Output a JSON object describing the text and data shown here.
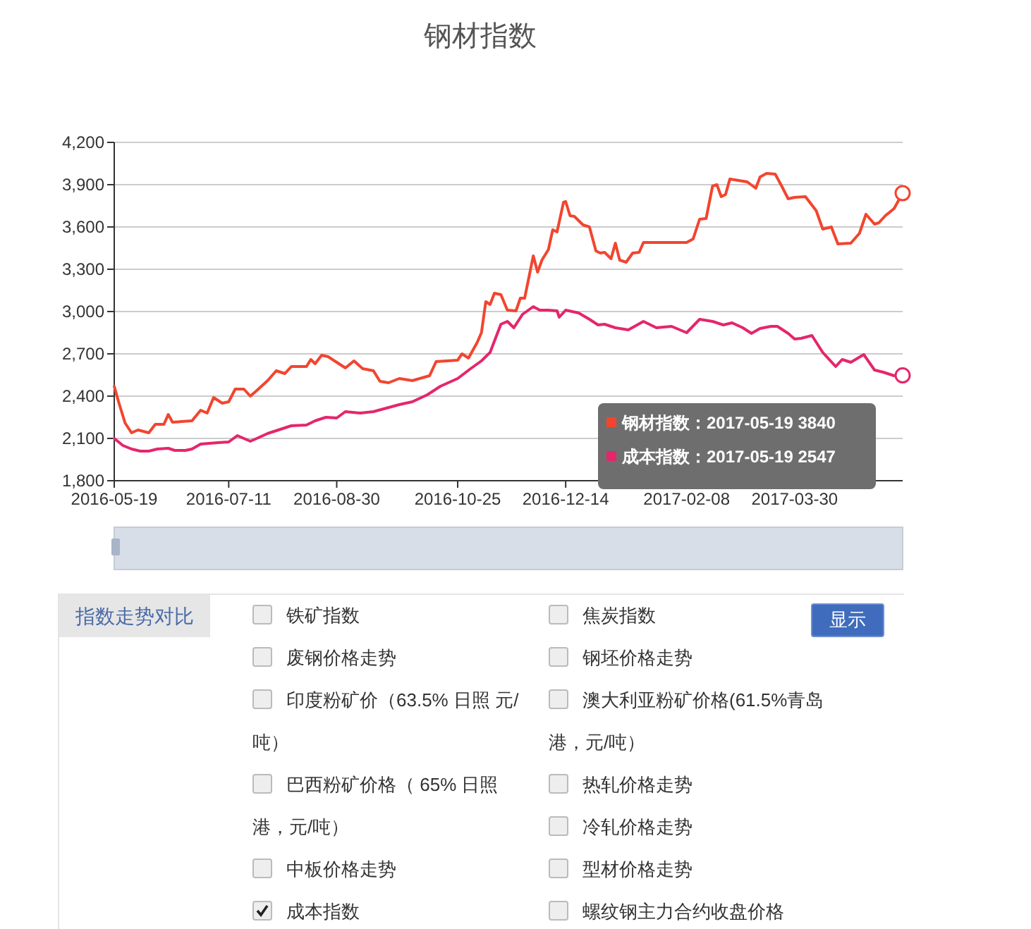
{
  "chart_data": [
    {
      "type": "line",
      "title": "钢材指数",
      "xlim": [
        "2016-05-19",
        "2017-05-19"
      ],
      "xticks": [
        "2016-05-19",
        "2016-07-11",
        "2016-08-30",
        "2016-10-25",
        "2016-12-14",
        "2017-02-08",
        "2017-03-30"
      ],
      "ylim": [
        1800,
        4200
      ],
      "yticks": [
        {
          "value": 1800,
          "label": "1,800"
        },
        {
          "value": 2100,
          "label": "2,100"
        },
        {
          "value": 2400,
          "label": "2,400"
        },
        {
          "value": 2700,
          "label": "2,700"
        },
        {
          "value": 3000,
          "label": "3,000"
        },
        {
          "value": 3300,
          "label": "3,300"
        },
        {
          "value": 3600,
          "label": "3,600"
        },
        {
          "value": 3900,
          "label": "3,900"
        },
        {
          "value": 4200,
          "label": "4,200"
        }
      ],
      "grid": "y",
      "line_style": "solid",
      "annotations": [
        "钢材指数：2017-05-19 3840",
        "成本指数：2017-05-19 2547"
      ],
      "series": [
        {
          "color": "#f2452f",
          "x": [
            "2016-05-19",
            "2016-05-21",
            "2016-05-24",
            "2016-05-27",
            "2016-05-30",
            "2016-06-04",
            "2016-06-07",
            "2016-06-11",
            "2016-06-13",
            "2016-06-15",
            "2016-06-24",
            "2016-06-28",
            "2016-07-01",
            "2016-07-04",
            "2016-07-08",
            "2016-07-11",
            "2016-07-14",
            "2016-07-18",
            "2016-07-21",
            "2016-07-24",
            "2016-07-29",
            "2016-08-02",
            "2016-08-06",
            "2016-08-09",
            "2016-08-16",
            "2016-08-18",
            "2016-08-20",
            "2016-08-23",
            "2016-08-26",
            "2016-08-30",
            "2016-09-03",
            "2016-09-07",
            "2016-09-11",
            "2016-09-16",
            "2016-09-19",
            "2016-09-23",
            "2016-09-28",
            "2016-10-04",
            "2016-10-12",
            "2016-10-15",
            "2016-10-25",
            "2016-10-27",
            "2016-10-30",
            "2016-11-03",
            "2016-11-05",
            "2016-11-07",
            "2016-11-09",
            "2016-11-11",
            "2016-11-14",
            "2016-11-17",
            "2016-11-21",
            "2016-11-23",
            "2016-11-25",
            "2016-11-29",
            "2016-12-01",
            "2016-12-03",
            "2016-12-06",
            "2016-12-08",
            "2016-12-10",
            "2016-12-13",
            "2016-12-14",
            "2016-12-16",
            "2016-12-18",
            "2016-12-22",
            "2016-12-25",
            "2016-12-28",
            "2016-12-30",
            "2017-01-01",
            "2017-01-04",
            "2017-01-06",
            "2017-01-08",
            "2017-01-11",
            "2017-01-14",
            "2017-01-17",
            "2017-01-19",
            "2017-01-29",
            "2017-02-08",
            "2017-02-11",
            "2017-02-14",
            "2017-02-17",
            "2017-02-20",
            "2017-02-22",
            "2017-02-24",
            "2017-02-26",
            "2017-02-28",
            "2017-03-04",
            "2017-03-08",
            "2017-03-12",
            "2017-03-14",
            "2017-03-17",
            "2017-03-21",
            "2017-03-24",
            "2017-03-27",
            "2017-03-30",
            "2017-04-04",
            "2017-04-09",
            "2017-04-12",
            "2017-04-16",
            "2017-04-19",
            "2017-04-25",
            "2017-04-29",
            "2017-05-02",
            "2017-05-06",
            "2017-05-08",
            "2017-05-11",
            "2017-05-15",
            "2017-05-19"
          ],
          "values": [
            2470,
            2360,
            2210,
            2140,
            2160,
            2140,
            2200,
            2200,
            2270,
            2215,
            2225,
            2300,
            2280,
            2390,
            2350,
            2360,
            2450,
            2450,
            2400,
            2440,
            2510,
            2580,
            2560,
            2610,
            2610,
            2660,
            2630,
            2690,
            2680,
            2640,
            2600,
            2650,
            2595,
            2580,
            2505,
            2495,
            2525,
            2510,
            2545,
            2645,
            2655,
            2700,
            2670,
            2780,
            2850,
            3070,
            3050,
            3130,
            3120,
            3010,
            3005,
            3095,
            3095,
            3395,
            3280,
            3365,
            3440,
            3580,
            3565,
            3775,
            3780,
            3680,
            3675,
            3615,
            3600,
            3430,
            3415,
            3420,
            3375,
            3485,
            3365,
            3350,
            3415,
            3420,
            3490,
            3490,
            3490,
            3515,
            3655,
            3660,
            3890,
            3900,
            3815,
            3830,
            3940,
            3930,
            3920,
            3875,
            3955,
            3980,
            3975,
            3890,
            3800,
            3810,
            3815,
            3715,
            3585,
            3600,
            3480,
            3485,
            3555,
            3690,
            3620,
            3630,
            3680,
            3730,
            3840
          ]
        },
        {
          "color": "#e5266b",
          "x": [
            "2016-05-19",
            "2016-05-23",
            "2016-05-27",
            "2016-05-31",
            "2016-06-04",
            "2016-06-08",
            "2016-06-13",
            "2016-06-16",
            "2016-06-21",
            "2016-06-24",
            "2016-06-28",
            "2016-07-06",
            "2016-07-11",
            "2016-07-15",
            "2016-07-21",
            "2016-07-24",
            "2016-07-29",
            "2016-08-03",
            "2016-08-09",
            "2016-08-16",
            "2016-08-20",
            "2016-08-25",
            "2016-08-30",
            "2016-09-03",
            "2016-09-10",
            "2016-09-16",
            "2016-09-22",
            "2016-09-28",
            "2016-10-04",
            "2016-10-11",
            "2016-10-17",
            "2016-10-25",
            "2016-10-31",
            "2016-11-05",
            "2016-11-09",
            "2016-11-14",
            "2016-11-17",
            "2016-11-20",
            "2016-11-24",
            "2016-11-29",
            "2016-12-02",
            "2016-12-06",
            "2016-12-10",
            "2016-12-11",
            "2016-12-14",
            "2016-12-20",
            "2016-12-25",
            "2016-12-29",
            "2017-01-01",
            "2017-01-06",
            "2017-01-12",
            "2017-01-19",
            "2017-01-25",
            "2017-02-01",
            "2017-02-08",
            "2017-02-14",
            "2017-02-20",
            "2017-02-25",
            "2017-03-01",
            "2017-03-06",
            "2017-03-10",
            "2017-03-14",
            "2017-03-19",
            "2017-03-22",
            "2017-03-27",
            "2017-03-30",
            "2017-04-02",
            "2017-04-07",
            "2017-04-12",
            "2017-04-18",
            "2017-04-21",
            "2017-04-25",
            "2017-05-01",
            "2017-05-06",
            "2017-05-10",
            "2017-05-15",
            "2017-05-19"
          ],
          "values": [
            2100,
            2050,
            2025,
            2010,
            2010,
            2025,
            2030,
            2015,
            2015,
            2025,
            2060,
            2070,
            2075,
            2120,
            2080,
            2100,
            2135,
            2160,
            2190,
            2195,
            2225,
            2250,
            2245,
            2290,
            2280,
            2290,
            2315,
            2340,
            2360,
            2410,
            2470,
            2525,
            2595,
            2650,
            2710,
            2910,
            2930,
            2885,
            2980,
            3035,
            3010,
            3010,
            3005,
            2960,
            3010,
            2990,
            2945,
            2905,
            2910,
            2885,
            2870,
            2930,
            2885,
            2895,
            2850,
            2945,
            2930,
            2905,
            2920,
            2885,
            2845,
            2880,
            2895,
            2895,
            2845,
            2805,
            2810,
            2830,
            2710,
            2610,
            2660,
            2640,
            2695,
            2585,
            2570,
            2545,
            2547
          ]
        }
      ]
    },
    {
      "type": "other",
      "title": "指数走势对比",
      "categories": [
        "铁矿指数",
        "废钢价格走势",
        "印度粉矿价（63.5% 日照 元/吨）",
        "巴西粉矿价格（ 65% 日照港，元/吨）",
        "中板价格走势",
        "成本指数",
        "焦炭指数",
        "钢坯价格走势",
        "澳大利亚粉矿价格(61.5%青岛港，元/吨）",
        "热轧价格走势",
        "冷轧价格走势",
        "型材价格走势",
        "螺纹钢主力合约收盘价格"
      ],
      "annotations": [
        "显示"
      ]
    }
  ]
}
